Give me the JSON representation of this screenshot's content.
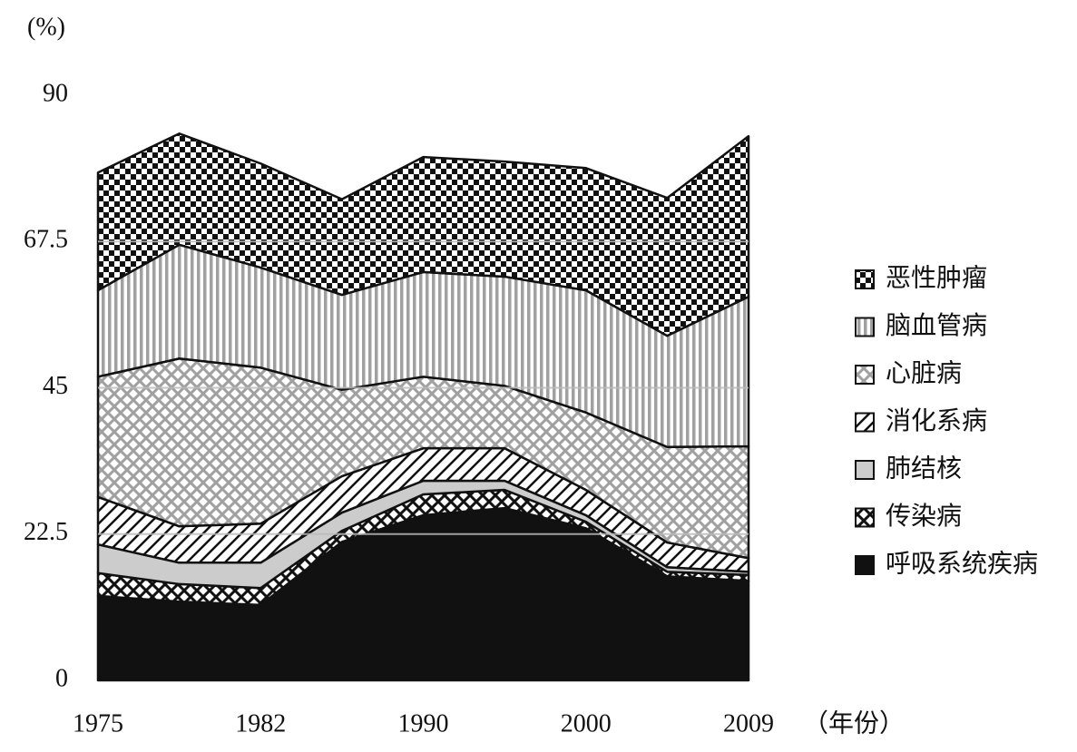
{
  "chart_data": {
    "type": "stacked_area",
    "y_label": "(%)",
    "x_label": "（年份）",
    "categories": [
      "1975",
      null,
      "1982",
      null,
      "1990",
      null,
      "2000",
      null,
      "2009"
    ],
    "ylim": [
      0,
      90
    ],
    "yticks": [
      0,
      22.5,
      45,
      67.5,
      90
    ],
    "grid": true,
    "series": [
      {
        "name": "呼吸系统疾病",
        "color": "#111111",
        "pattern": "solid",
        "values": [
          13.0,
          12.1,
          11.6,
          21.3,
          25.4,
          26.5,
          23.4,
          16.0,
          15.3
        ]
      },
      {
        "name": "传染病",
        "color": "#111111",
        "pattern": "crosshatch",
        "values": [
          3.5,
          2.7,
          2.6,
          1.7,
          3.2,
          2.8,
          1.0,
          0.7,
          0.9
        ]
      },
      {
        "name": "肺结核",
        "color": "#cccccc",
        "pattern": "solid",
        "values": [
          4.4,
          3.3,
          3.9,
          2.8,
          2.1,
          1.4,
          1.0,
          0.7,
          0.5
        ]
      },
      {
        "name": "消化系病",
        "color": "#111111",
        "pattern": "diagonal",
        "values": [
          7.3,
          5.6,
          6.0,
          5.6,
          5.0,
          5.0,
          3.9,
          3.8,
          2.1
        ]
      },
      {
        "name": "心脏病",
        "color": "#a0a0a0",
        "pattern": "crosshatch",
        "values": [
          18.5,
          25.8,
          24.0,
          13.3,
          11.0,
          9.6,
          11.9,
          14.7,
          17.2
        ]
      },
      {
        "name": "脑血管病",
        "color": "#a0a0a0",
        "pattern": "vertical",
        "values": [
          13.3,
          17.5,
          15.4,
          14.6,
          16.1,
          16.8,
          18.8,
          17.1,
          23.0
        ]
      },
      {
        "name": "恶性肿瘤",
        "color": "#111111",
        "pattern": "checker",
        "values": [
          18.1,
          17.1,
          16.0,
          14.7,
          17.7,
          17.7,
          18.8,
          21.2,
          24.7
        ]
      }
    ]
  }
}
